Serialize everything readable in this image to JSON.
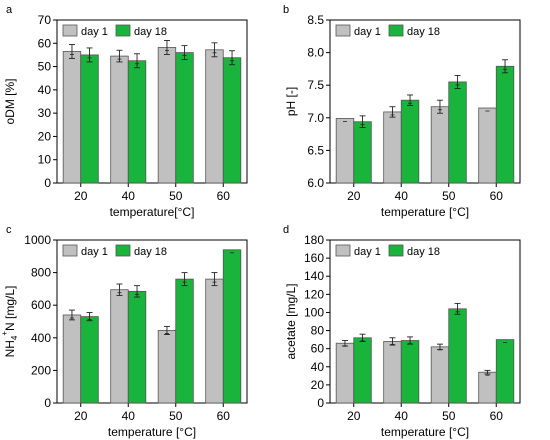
{
  "colors": {
    "day1": "#c0c0c0",
    "day18": "#19b43c",
    "stroke": "#555555",
    "err": "#222222"
  },
  "chart_data": [
    {
      "panel": "a",
      "type": "bar",
      "categories": [
        "20",
        "40",
        "50",
        "60"
      ],
      "series": [
        {
          "name": "day 1",
          "values": [
            56.5,
            54.5,
            58.2,
            57.2
          ],
          "errors": [
            3.0,
            2.5,
            3.0,
            3.0
          ]
        },
        {
          "name": "day 18",
          "values": [
            55.0,
            52.5,
            56.0,
            53.8
          ],
          "errors": [
            3.0,
            3.0,
            3.0,
            3.0
          ]
        }
      ],
      "xlabel": "temperature[°C]",
      "ylabel": "oDM [%]",
      "ylim": [
        0,
        70
      ],
      "yticks": [
        "0",
        "10",
        "20",
        "30",
        "40",
        "50",
        "60",
        "70"
      ],
      "legend": "top-left"
    },
    {
      "panel": "b",
      "type": "bar",
      "categories": [
        "20",
        "40",
        "50",
        "60"
      ],
      "series": [
        {
          "name": "day 1",
          "values": [
            6.99,
            7.09,
            7.17,
            7.15
          ],
          "errors": [
            0.0,
            0.08,
            0.1,
            0.0
          ]
        },
        {
          "name": "day 18",
          "values": [
            6.94,
            7.27,
            7.55,
            7.79
          ],
          "errors": [
            0.09,
            0.08,
            0.1,
            0.1
          ]
        }
      ],
      "xlabel": "temperature [°C]",
      "ylabel": "pH [-]",
      "ylim": [
        6.0,
        8.5
      ],
      "yticks": [
        "6.0",
        "6.5",
        "7.0",
        "7.5",
        "8.0",
        "8.5"
      ],
      "legend": "top-left"
    },
    {
      "panel": "c",
      "type": "bar",
      "categories": [
        "20",
        "40",
        "50",
        "60"
      ],
      "series": [
        {
          "name": "day 1",
          "values": [
            540,
            695,
            445,
            760
          ],
          "errors": [
            30,
            35,
            25,
            40
          ]
        },
        {
          "name": "day 18",
          "values": [
            530,
            685,
            760,
            940
          ],
          "errors": [
            25,
            35,
            40,
            0
          ]
        }
      ],
      "xlabel": "temperature [°C]",
      "ylabel": "NH4+-N [mg/L]",
      "ylim": [
        0,
        1000
      ],
      "yticks": [
        "0",
        "200",
        "400",
        "600",
        "800",
        "1000"
      ],
      "legend": "top-left"
    },
    {
      "panel": "d",
      "type": "bar",
      "categories": [
        "20",
        "40",
        "50",
        "60"
      ],
      "series": [
        {
          "name": "day 1",
          "values": [
            66,
            68,
            62,
            34
          ],
          "errors": [
            3,
            4,
            3,
            2
          ]
        },
        {
          "name": "day 18",
          "values": [
            72,
            69,
            104,
            70
          ],
          "errors": [
            4,
            4,
            6,
            0
          ]
        }
      ],
      "xlabel": "temperature [°C]",
      "ylabel": "acetate [mg/L]",
      "ylim": [
        0,
        180
      ],
      "yticks": [
        "0",
        "20",
        "40",
        "60",
        "80",
        "100",
        "120",
        "140",
        "160",
        "180"
      ],
      "legend": "top-left"
    }
  ]
}
